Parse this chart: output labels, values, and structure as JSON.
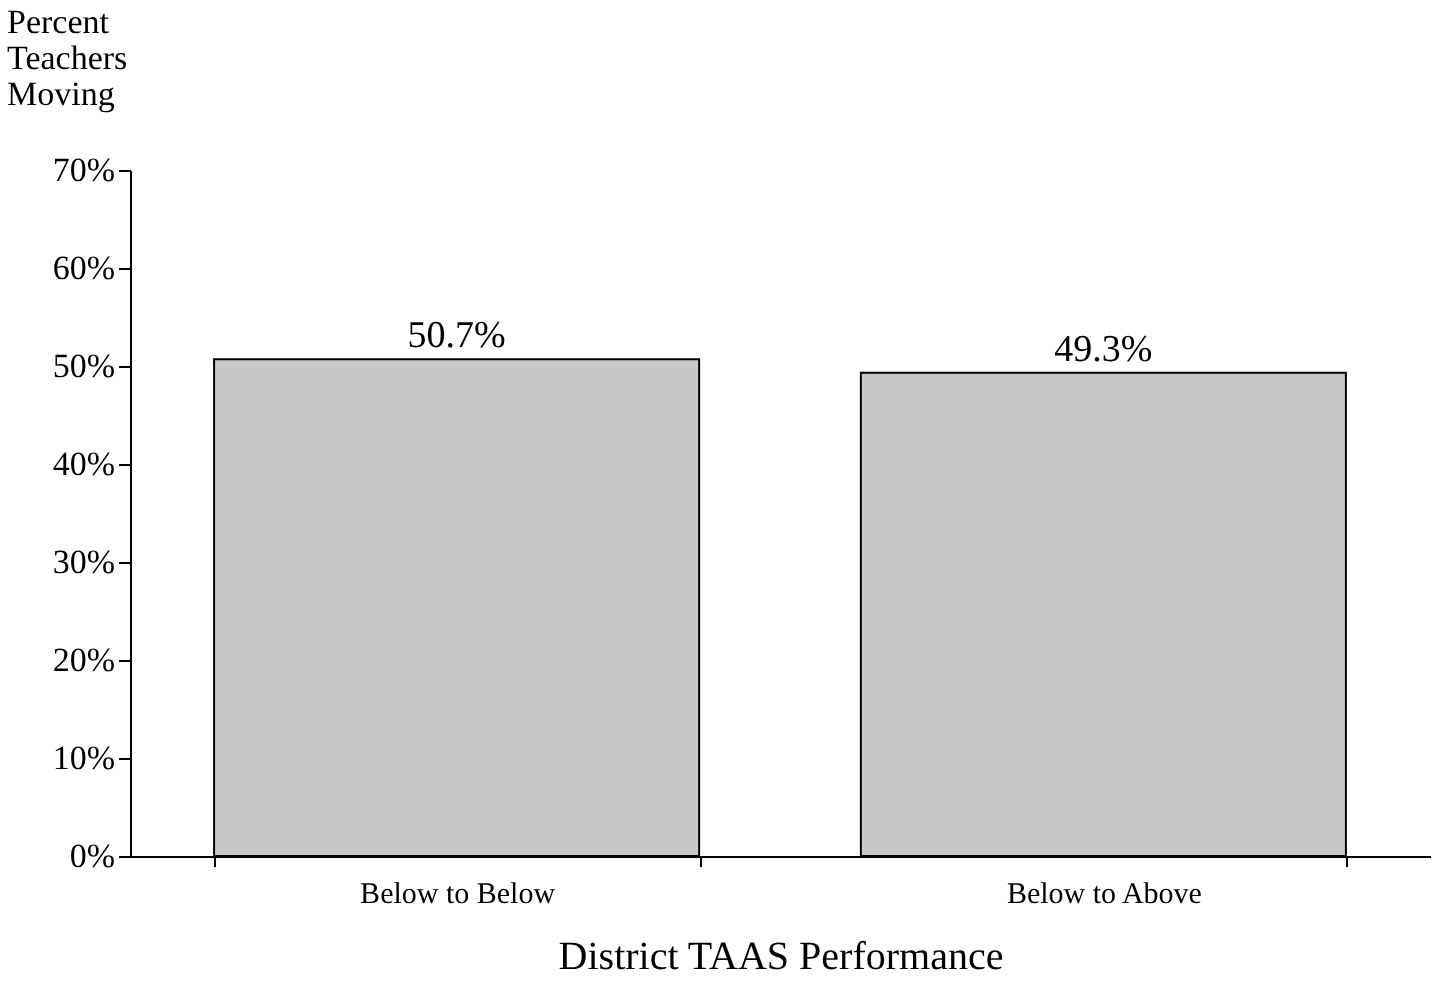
{
  "chart_data": {
    "type": "bar",
    "xlabel": "District TAAS Performance",
    "ylabel": "Percent Teachers Moving",
    "categories": [
      "Below to Below",
      "Below to Above"
    ],
    "values": [
      50.7,
      49.3
    ],
    "color": "#c8c8c8",
    "value_labels": [
      "50.7%",
      "49.3%"
    ],
    "ylim": [
      0,
      70
    ],
    "yticks": [
      {
        "value": 0,
        "label": "0%"
      },
      {
        "value": 10,
        "label": "10%"
      },
      {
        "value": 20,
        "label": "20%"
      },
      {
        "value": 30,
        "label": "30%"
      },
      {
        "value": 40,
        "label": "40%"
      },
      {
        "value": 50,
        "label": "50%"
      },
      {
        "value": 60,
        "label": "60%"
      },
      {
        "value": 70,
        "label": "70%"
      }
    ],
    "grid": false
  }
}
